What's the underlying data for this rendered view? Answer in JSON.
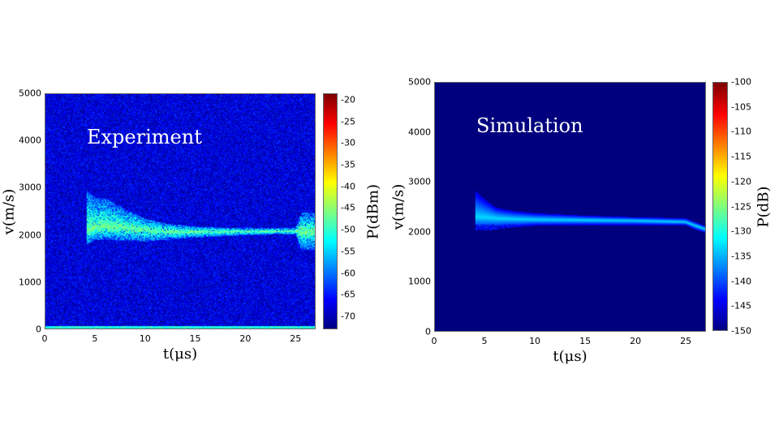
{
  "chart_data": [
    {
      "type": "heatmap",
      "annotation": "Experiment",
      "xlabel": "t(μs)",
      "ylabel": "v(m/s)",
      "colorbar_label": "P(dBm)",
      "colormap": "jet",
      "xlim": [
        0,
        27
      ],
      "ylim": [
        0,
        5000
      ],
      "clim": [
        -73,
        -18.5
      ],
      "xticks": [
        "0",
        "5",
        "10",
        "15",
        "20",
        "25"
      ],
      "yticks": [
        "0",
        "1000",
        "2000",
        "3000",
        "4000",
        "5000"
      ],
      "cticks": [
        "-20",
        "-25",
        "-30",
        "-35",
        "-40",
        "-45",
        "-50",
        "-55",
        "-60",
        "-65",
        "-70"
      ],
      "background_level": -68,
      "ridge": {
        "t": [
          4.1,
          5,
          6,
          8,
          10,
          12,
          15,
          20,
          25,
          25.6,
          27
        ],
        "v_low": [
          1800,
          1900,
          1900,
          1880,
          1870,
          1900,
          1950,
          2000,
          2020,
          1700,
          1700
        ],
        "v_high": [
          2950,
          2800,
          2780,
          2550,
          2350,
          2250,
          2180,
          2150,
          2150,
          2480,
          2480
        ],
        "v_peak": [
          2080,
          2150,
          2180,
          2150,
          2100,
          2080,
          2070,
          2080,
          2080,
          2080,
          2080
        ],
        "level": -47
      }
    },
    {
      "type": "heatmap",
      "annotation": "Simulation",
      "xlabel": "t(μs)",
      "ylabel": "v(m/s)",
      "colorbar_label": "P(dB)",
      "colormap": "jet",
      "xlim": [
        0,
        27
      ],
      "ylim": [
        0,
        5000
      ],
      "clim": [
        -150,
        -100
      ],
      "xticks": [
        "0",
        "5",
        "10",
        "15",
        "20",
        "25"
      ],
      "yticks": [
        "0",
        "1000",
        "2000",
        "3000",
        "4000",
        "5000"
      ],
      "cticks": [
        "-100",
        "-105",
        "-110",
        "-115",
        "-120",
        "-125",
        "-130",
        "-135",
        "-140",
        "-145",
        "-150"
      ],
      "background_level": -150,
      "ridge": {
        "t": [
          4.0,
          5,
          6,
          7,
          8,
          10,
          15,
          20,
          25,
          26,
          27
        ],
        "v_low": [
          2030,
          2030,
          2050,
          2080,
          2100,
          2130,
          2140,
          2140,
          2140,
          2050,
          1980
        ],
        "v_high": [
          2830,
          2650,
          2500,
          2450,
          2420,
          2380,
          2330,
          2300,
          2280,
          2200,
          2120
        ],
        "v_peak": [
          2300,
          2300,
          2280,
          2270,
          2260,
          2250,
          2240,
          2230,
          2200,
          2130,
          2060
        ],
        "level": -133
      }
    }
  ]
}
